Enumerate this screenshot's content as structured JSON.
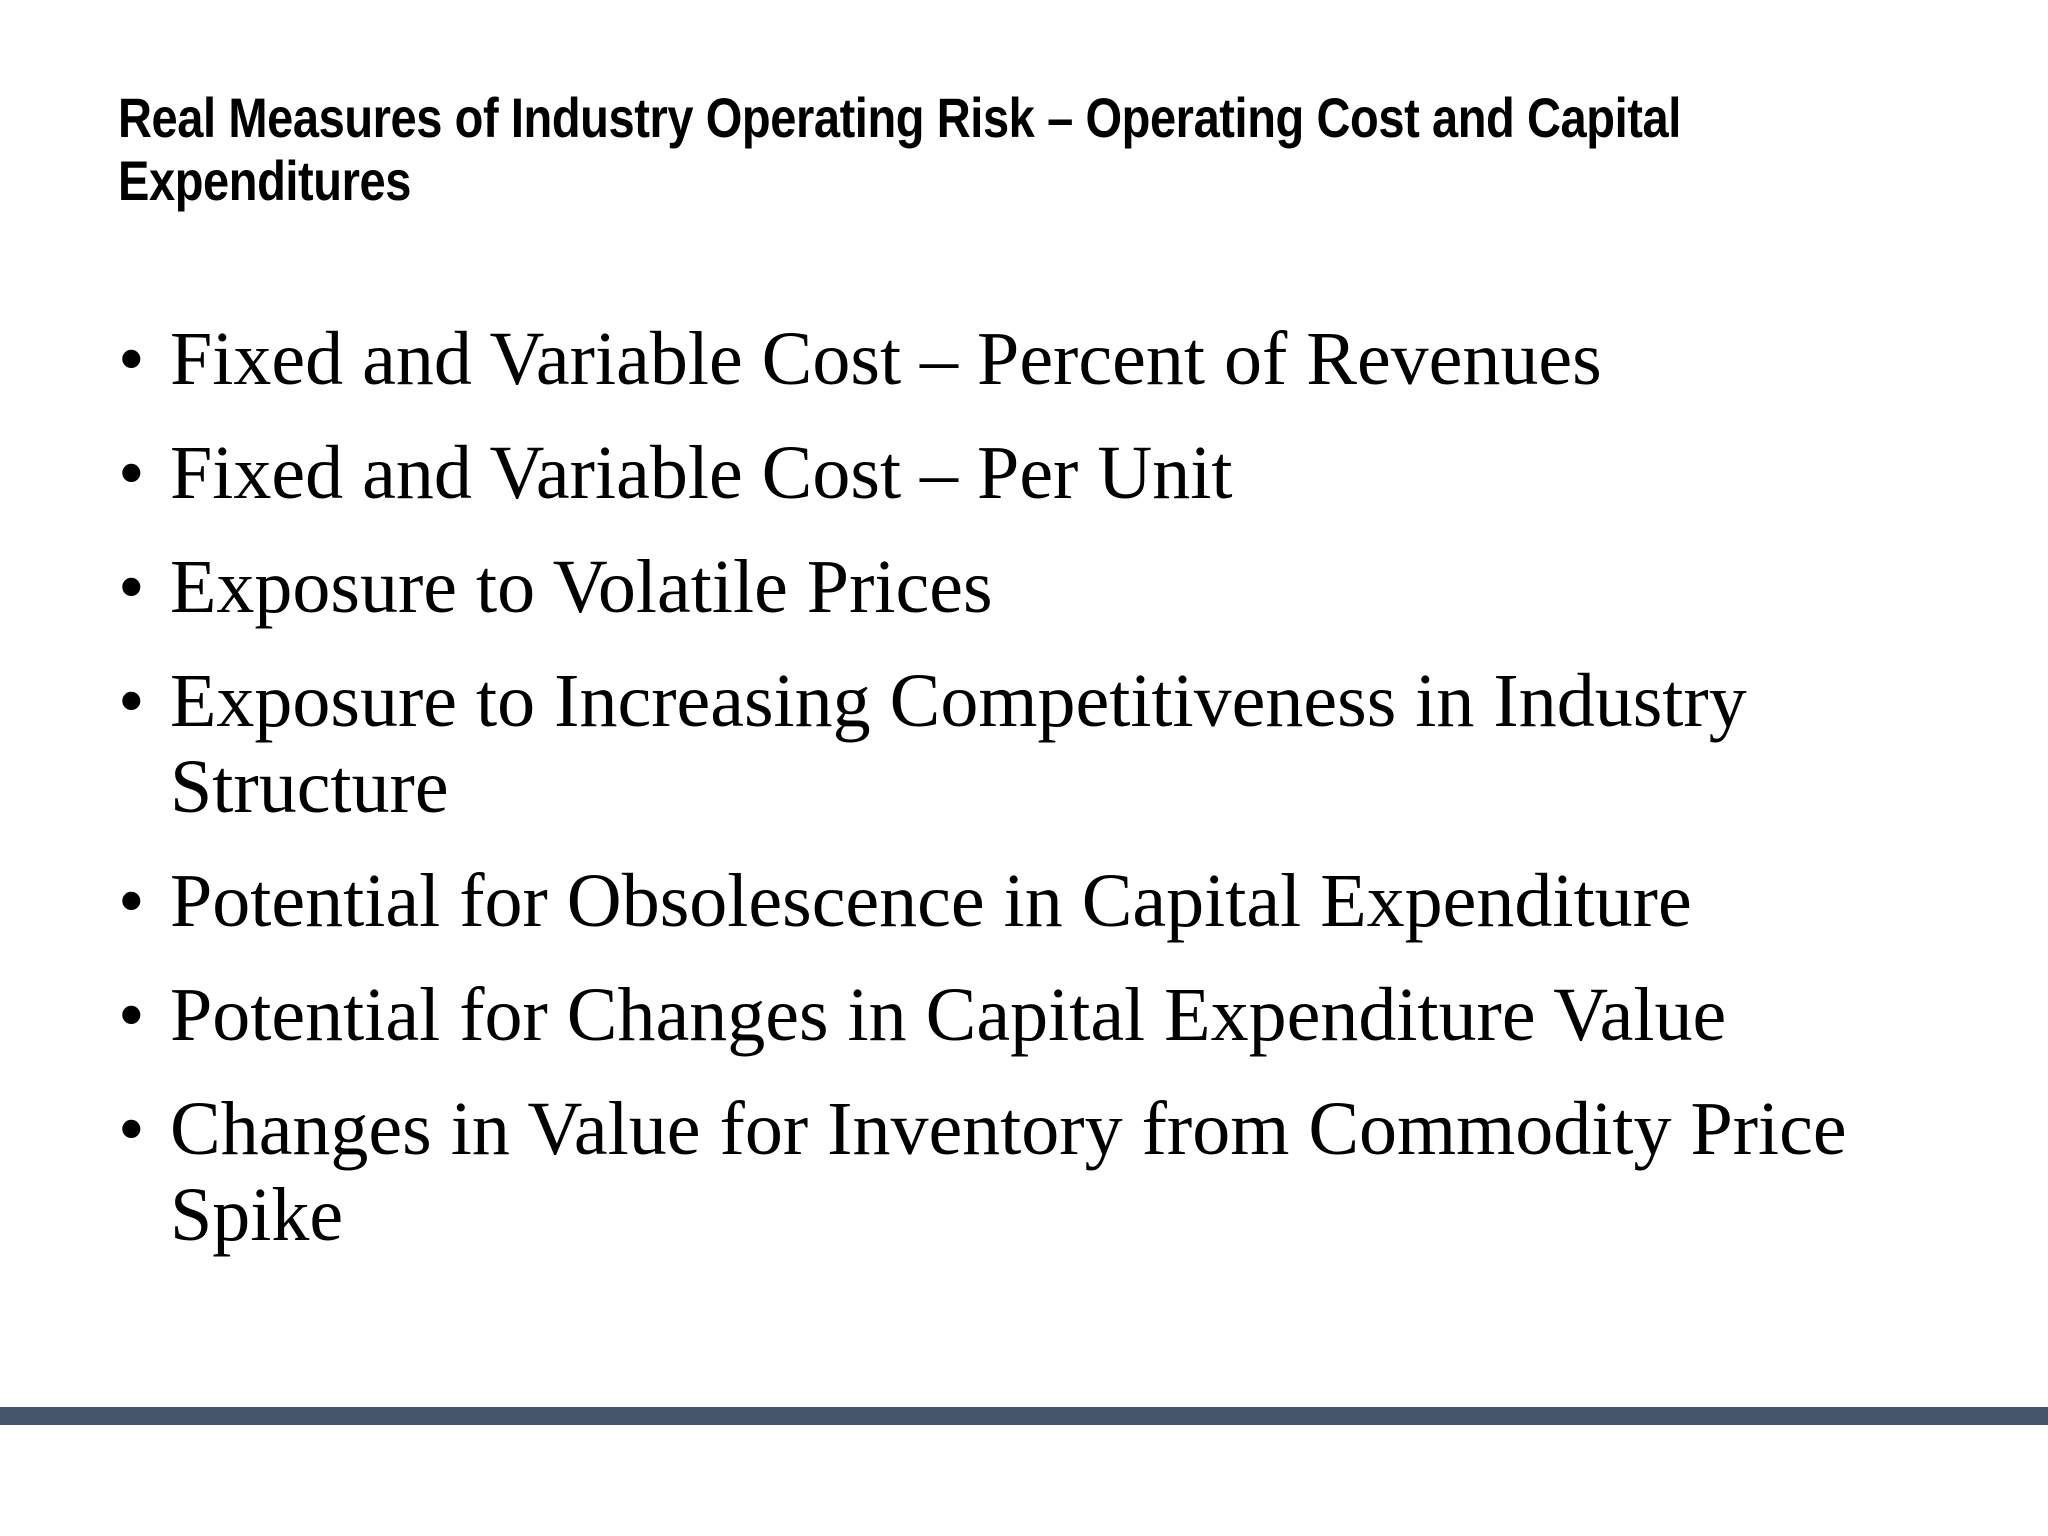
{
  "slide": {
    "title": "Real Measures of Industry Operating Risk – Operating Cost and Capital\nExpenditures",
    "bullet_marker": "•",
    "bullets": [
      {
        "text": "Fixed and Variable Cost – Percent of Revenues"
      },
      {
        "text": "Fixed and Variable Cost – Per Unit"
      },
      {
        "text": "Exposure to Volatile Prices"
      },
      {
        "text": "Exposure to Increasing Competitiveness in Industry\nStructure"
      },
      {
        "text": "Potential for Obsolescence in Capital Expenditure"
      },
      {
        "text": "Potential for Changes in Capital Expenditure Value"
      },
      {
        "text": "Changes in Value for Inventory from Commodity Price\nSpike"
      }
    ],
    "colors": {
      "background": "#ffffff",
      "text": "#000000",
      "footer_bar": "#44546a"
    }
  }
}
